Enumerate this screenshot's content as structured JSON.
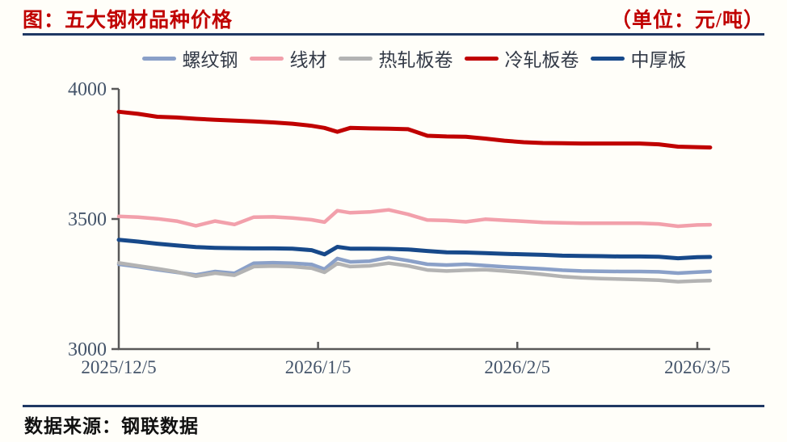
{
  "header": {
    "title": "图：五大钢材品种价格",
    "unit_label": "（单位：元/吨）"
  },
  "footer": {
    "source": "数据来源：钢联数据"
  },
  "colors": {
    "title_red": "#C00000",
    "rule_navy": "#1F3864",
    "axis_line": "#595959",
    "axis_label": "#44546A",
    "background": "#FFFEF9"
  },
  "chart_data": {
    "type": "line",
    "title": "图：五大钢材品种价格",
    "unit": "元/吨",
    "xlabel": "",
    "ylabel": "",
    "grid": false,
    "legend_position": "top",
    "ylim": [
      3000,
      4000
    ],
    "y_ticks": [
      3000,
      3500,
      4000
    ],
    "x_axis_note": "days since 2025/12/5",
    "x_tick_days": [
      0,
      31,
      62,
      90
    ],
    "x_tick_labels": [
      "2025/12/5",
      "2026/1/5",
      "2026/2/5",
      "2026/3/5"
    ],
    "x_days": [
      0,
      3,
      6,
      9,
      12,
      15,
      18,
      21,
      24,
      27,
      30,
      32,
      34,
      36,
      39,
      42,
      45,
      48,
      51,
      54,
      57,
      60,
      63,
      66,
      69,
      72,
      75,
      78,
      81,
      84,
      87,
      90,
      92
    ],
    "series": [
      {
        "id": "rebar",
        "name": "螺纹钢",
        "color": "#8AA0C8",
        "stroke_width": 4.5,
        "values": [
          3326,
          3316,
          3305,
          3295,
          3285,
          3298,
          3291,
          3330,
          3332,
          3330,
          3325,
          3307,
          3348,
          3335,
          3338,
          3352,
          3340,
          3326,
          3323,
          3326,
          3321,
          3316,
          3312,
          3308,
          3303,
          3300,
          3299,
          3298,
          3298,
          3297,
          3292,
          3296,
          3298
        ]
      },
      {
        "id": "wire-rod",
        "name": "线材",
        "color": "#F2A0AB",
        "stroke_width": 4.5,
        "values": [
          3510,
          3507,
          3501,
          3492,
          3474,
          3492,
          3479,
          3507,
          3508,
          3504,
          3497,
          3488,
          3532,
          3524,
          3527,
          3535,
          3518,
          3496,
          3494,
          3489,
          3499,
          3495,
          3491,
          3487,
          3485,
          3484,
          3484,
          3484,
          3484,
          3481,
          3472,
          3477,
          3478
        ]
      },
      {
        "id": "hot-rolled-coil",
        "name": "热轧板卷",
        "color": "#B3B3B3",
        "stroke_width": 4.5,
        "values": [
          3331,
          3320,
          3309,
          3297,
          3280,
          3292,
          3284,
          3317,
          3319,
          3317,
          3311,
          3295,
          3329,
          3317,
          3320,
          3330,
          3320,
          3304,
          3300,
          3303,
          3305,
          3300,
          3294,
          3287,
          3279,
          3274,
          3271,
          3269,
          3267,
          3265,
          3259,
          3262,
          3263
        ]
      },
      {
        "id": "cold-rolled-coil",
        "name": "冷轧板卷",
        "color": "#C00000",
        "stroke_width": 5,
        "values": [
          3912,
          3904,
          3893,
          3890,
          3885,
          3881,
          3878,
          3875,
          3871,
          3866,
          3858,
          3850,
          3835,
          3850,
          3848,
          3847,
          3845,
          3820,
          3817,
          3816,
          3809,
          3801,
          3795,
          3792,
          3791,
          3790,
          3790,
          3790,
          3790,
          3787,
          3778,
          3776,
          3775
        ]
      },
      {
        "id": "medium-plate",
        "name": "中厚板",
        "color": "#17498A",
        "stroke_width": 5,
        "values": [
          3420,
          3413,
          3405,
          3398,
          3392,
          3389,
          3388,
          3387,
          3387,
          3386,
          3380,
          3364,
          3393,
          3386,
          3386,
          3385,
          3383,
          3377,
          3372,
          3371,
          3369,
          3366,
          3364,
          3362,
          3359,
          3358,
          3357,
          3356,
          3356,
          3355,
          3349,
          3353,
          3354
        ]
      }
    ]
  }
}
